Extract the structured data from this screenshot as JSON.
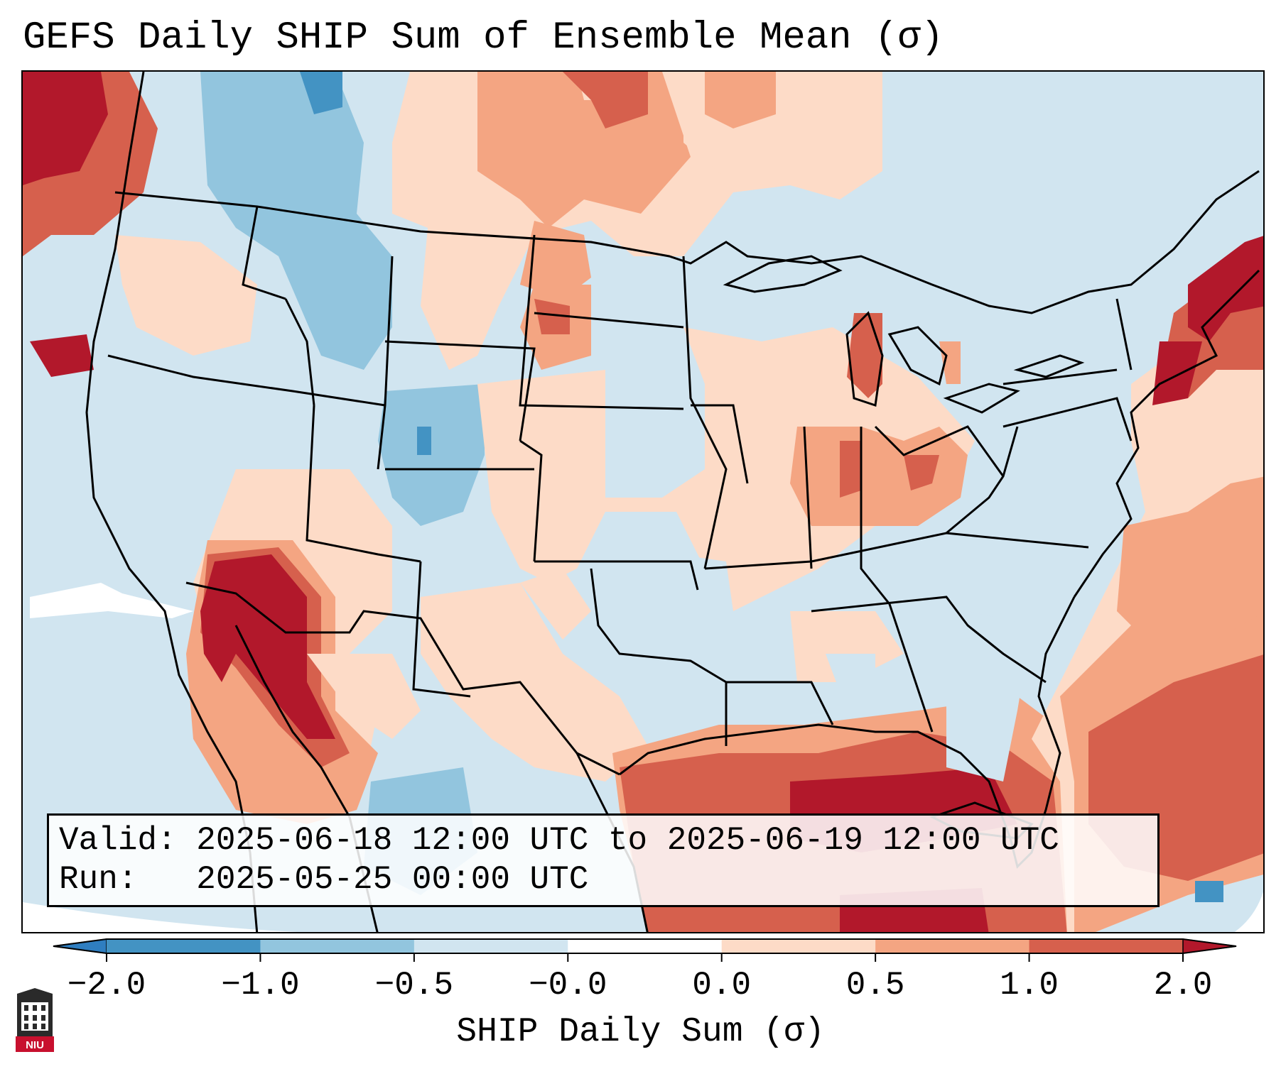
{
  "title": "GEFS Daily SHIP Sum of Ensemble Mean (σ)",
  "info": {
    "valid_label": "Valid:",
    "valid_value": "2025-06-18 12:00 UTC to 2025-06-19 12:00 UTC",
    "run_label": "Run:",
    "run_value": "2025-05-25 00:00 UTC"
  },
  "colorbar": {
    "title": "SHIP Daily Sum (σ)",
    "ticks": [
      "−2.0",
      "−1.0",
      "−0.5",
      "−0.0",
      "0.0",
      "0.5",
      "1.0",
      "2.0"
    ],
    "levels": [
      -2.0,
      -1.0,
      -0.5,
      -0.0,
      0.0,
      0.5,
      1.0,
      2.0
    ],
    "colors": {
      "under": "#2f7ec0",
      "b_m2_m1": "#4393c3",
      "b_m1_m05": "#92c5de",
      "b_m05_m0": "#d1e5f0",
      "b_0_0": "#ffffff",
      "b_0_05": "#fddbc7",
      "b_05_1": "#f4a582",
      "b_1_2": "#d6604d",
      "over": "#b2182b"
    }
  },
  "logo": {
    "text": "NIU",
    "name": "Northern Illinois University"
  },
  "regions": [
    {
      "name": "Pacific Northwest coast",
      "value": 2.0
    },
    {
      "name": "Washington / Oregon",
      "value": -0.3
    },
    {
      "name": "Idaho / W Montana",
      "value": -0.7
    },
    {
      "name": "Colorado / Wyoming",
      "value": -0.6
    },
    {
      "name": "N Plains",
      "value": 0.8
    },
    {
      "name": "Lower Colorado River / Baja",
      "value": 2.0
    },
    {
      "name": "Texas",
      "value": -0.3
    },
    {
      "name": "Gulf of Mexico",
      "value": 1.3
    },
    {
      "name": "Lake Michigan",
      "value": 1.4
    },
    {
      "name": "Ohio Valley",
      "value": 0.7
    },
    {
      "name": "Southeast US",
      "value": -0.3
    },
    {
      "name": "New England",
      "value": 1.6
    },
    {
      "name": "W Atlantic",
      "value": 1.2
    }
  ]
}
